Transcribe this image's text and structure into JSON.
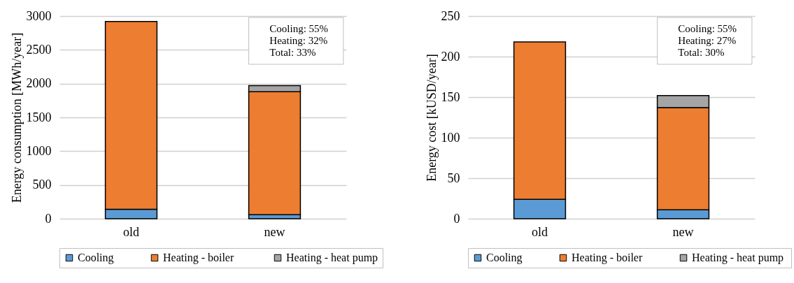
{
  "chart_data": [
    {
      "type": "bar",
      "stacked": true,
      "categories": [
        "old",
        "new"
      ],
      "ylabel": "Energy consumption [MWh/year]",
      "ylim": [
        0,
        3000
      ],
      "yticks": [
        0,
        500,
        1000,
        1500,
        2000,
        2500,
        3000
      ],
      "grid": "y",
      "legend": "bottom",
      "series": [
        {
          "name": "Cooling",
          "color": "#5b9bd5",
          "values": [
            140,
            60
          ]
        },
        {
          "name": "Heating  - boiler",
          "color": "#ed7d31",
          "values": [
            2780,
            1820
          ]
        },
        {
          "name": "Heating - heat pump",
          "color": "#a5a5a5",
          "values": [
            null,
            90
          ]
        }
      ],
      "annotations": [
        "Cooling:  55%",
        "Heating:  32%",
        "Total:     33%"
      ]
    },
    {
      "type": "bar",
      "stacked": true,
      "categories": [
        "old",
        "new"
      ],
      "ylabel": "Energy cost [kUSD/year]",
      "ylim": [
        0,
        250
      ],
      "yticks": [
        0,
        50,
        100,
        150,
        200,
        250
      ],
      "grid": "y",
      "legend": "bottom",
      "series": [
        {
          "name": "Cooling",
          "color": "#5b9bd5",
          "values": [
            24,
            11
          ]
        },
        {
          "name": "Heating - boiler",
          "color": "#ed7d31",
          "values": [
            194,
            126
          ]
        },
        {
          "name": "Heating  - heat pump",
          "color": "#a5a5a5",
          "values": [
            null,
            15
          ]
        }
      ],
      "annotations": [
        "Cooling:  55%",
        "Heating:  27%",
        "Total:     30%"
      ]
    }
  ]
}
